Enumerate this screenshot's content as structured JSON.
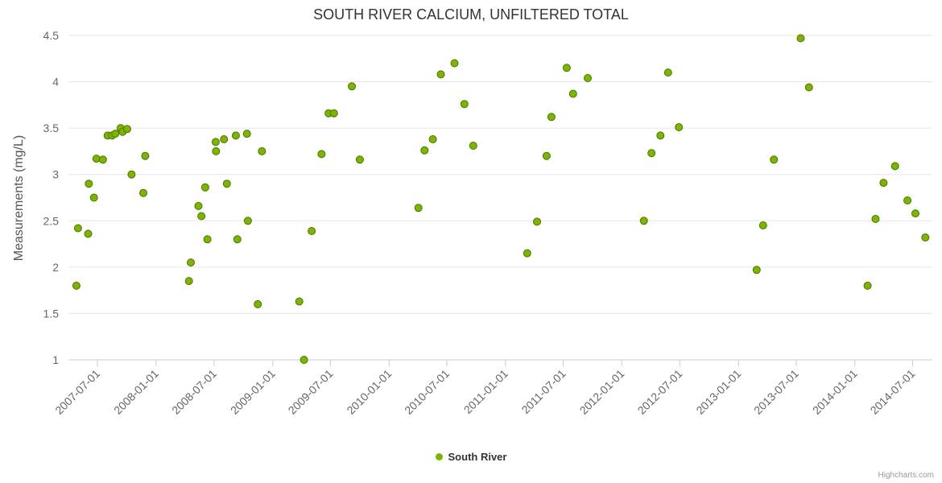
{
  "credits": {
    "label": "Highcharts.com"
  },
  "chart_data": {
    "type": "scatter",
    "title": "SOUTH RIVER CALCIUM, UNFILTERED TOTAL",
    "xlabel": "",
    "ylabel": "Measurements (mg/L)",
    "ylim": [
      1,
      4.5
    ],
    "y_ticks": [
      1,
      1.5,
      2,
      2.5,
      3,
      3.5,
      4,
      4.5
    ],
    "x_ticks": [
      "2007-07-01",
      "2008-01-01",
      "2008-07-01",
      "2009-01-01",
      "2009-07-01",
      "2010-01-01",
      "2010-07-01",
      "2011-01-01",
      "2011-07-01",
      "2012-01-01",
      "2012-07-01",
      "2013-01-01",
      "2013-07-01",
      "2014-01-01",
      "2014-07-01"
    ],
    "x_range": [
      "2007-04-01",
      "2014-09-01"
    ],
    "grid": "horizontal-only",
    "legend_position": "bottom-center",
    "colors": {
      "grid": "#e6e6e6",
      "axis": "#cccccc",
      "tick_text": "#666666"
    },
    "series": [
      {
        "name": "South River",
        "color": "#7cb500",
        "stroke": "#4e7300",
        "points": [
          [
            "2007-04-26",
            1.8
          ],
          [
            "2007-05-01",
            2.42
          ],
          [
            "2007-06-02",
            2.36
          ],
          [
            "2007-06-04",
            2.9
          ],
          [
            "2007-06-20",
            2.75
          ],
          [
            "2007-06-28",
            3.17
          ],
          [
            "2007-07-18",
            3.16
          ],
          [
            "2007-08-02",
            3.42
          ],
          [
            "2007-08-16",
            3.42
          ],
          [
            "2007-08-26",
            3.44
          ],
          [
            "2007-09-12",
            3.5
          ],
          [
            "2007-09-18",
            3.46
          ],
          [
            "2007-10-02",
            3.49
          ],
          [
            "2007-10-16",
            3.0
          ],
          [
            "2007-11-22",
            2.8
          ],
          [
            "2007-11-28",
            3.2
          ],
          [
            "2008-04-13",
            1.85
          ],
          [
            "2008-04-19",
            2.05
          ],
          [
            "2008-05-13",
            2.66
          ],
          [
            "2008-05-22",
            2.55
          ],
          [
            "2008-06-03",
            2.86
          ],
          [
            "2008-06-10",
            2.3
          ],
          [
            "2008-07-06",
            3.35
          ],
          [
            "2008-07-07",
            3.25
          ],
          [
            "2008-08-01",
            3.38
          ],
          [
            "2008-08-10",
            2.9
          ],
          [
            "2008-09-07",
            3.42
          ],
          [
            "2008-09-12",
            2.3
          ],
          [
            "2008-10-12",
            3.44
          ],
          [
            "2008-10-15",
            2.5
          ],
          [
            "2008-11-15",
            1.6
          ],
          [
            "2008-11-28",
            3.25
          ],
          [
            "2009-03-25",
            1.63
          ],
          [
            "2009-04-09",
            1.0
          ],
          [
            "2009-05-03",
            2.39
          ],
          [
            "2009-06-03",
            3.22
          ],
          [
            "2009-06-25",
            3.66
          ],
          [
            "2009-07-12",
            3.66
          ],
          [
            "2009-09-06",
            3.95
          ],
          [
            "2009-10-01",
            3.16
          ],
          [
            "2010-04-03",
            2.64
          ],
          [
            "2010-04-22",
            3.26
          ],
          [
            "2010-05-18",
            3.38
          ],
          [
            "2010-06-12",
            4.08
          ],
          [
            "2010-07-25",
            4.2
          ],
          [
            "2010-08-25",
            3.76
          ],
          [
            "2010-09-22",
            3.31
          ],
          [
            "2011-03-10",
            2.15
          ],
          [
            "2011-04-10",
            2.49
          ],
          [
            "2011-05-10",
            3.2
          ],
          [
            "2011-05-25",
            3.62
          ],
          [
            "2011-07-12",
            4.15
          ],
          [
            "2011-08-01",
            3.87
          ],
          [
            "2011-09-16",
            4.04
          ],
          [
            "2012-03-10",
            2.5
          ],
          [
            "2012-04-03",
            3.23
          ],
          [
            "2012-05-01",
            3.42
          ],
          [
            "2012-05-25",
            4.1
          ],
          [
            "2012-06-28",
            3.51
          ],
          [
            "2013-02-27",
            1.97
          ],
          [
            "2013-03-19",
            2.45
          ],
          [
            "2013-04-22",
            3.16
          ],
          [
            "2013-07-15",
            4.47
          ],
          [
            "2013-08-10",
            3.94
          ],
          [
            "2014-02-10",
            1.8
          ],
          [
            "2014-03-07",
            2.52
          ],
          [
            "2014-04-01",
            2.91
          ],
          [
            "2014-05-07",
            3.09
          ],
          [
            "2014-06-15",
            2.72
          ],
          [
            "2014-07-10",
            2.58
          ],
          [
            "2014-08-10",
            2.32
          ]
        ]
      }
    ]
  }
}
